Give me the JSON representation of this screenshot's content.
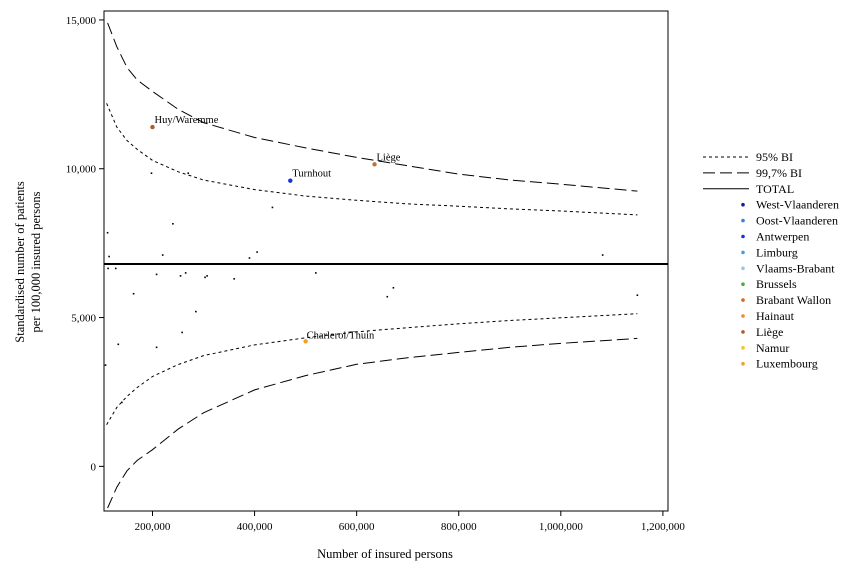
{
  "chart_data": {
    "type": "scatter",
    "xlabel": "Number of insured persons",
    "ylabel_line1": "Standardised number of patients",
    "ylabel_line2": "per 100,000 insured persons",
    "xlim": [
      105000,
      1210000
    ],
    "ylim": [
      -1500,
      15300
    ],
    "x_ticks": [
      {
        "v": 200000,
        "label": "200,000"
      },
      {
        "v": 400000,
        "label": "400,000"
      },
      {
        "v": 600000,
        "label": "600,000"
      },
      {
        "v": 800000,
        "label": "800,000"
      },
      {
        "v": 1000000,
        "label": "1,000,000"
      },
      {
        "v": 1200000,
        "label": "1,200,000"
      }
    ],
    "y_ticks": [
      {
        "v": 15000,
        "label": "15,000"
      },
      {
        "v": 10000,
        "label": "10,000"
      },
      {
        "v": 5000,
        "label": "5,000"
      },
      {
        "v": 0,
        "label": "0"
      }
    ],
    "total_line": 6800,
    "funnel": {
      "x_start": 110000,
      "x_end": 1150000,
      "ci95_upper": [
        [
          110000,
          12200
        ],
        [
          130000,
          11400
        ],
        [
          150000,
          10950
        ],
        [
          170000,
          10650
        ],
        [
          200000,
          10280
        ],
        [
          250000,
          9900
        ],
        [
          300000,
          9620
        ],
        [
          400000,
          9300
        ],
        [
          500000,
          9080
        ],
        [
          600000,
          8940
        ],
        [
          700000,
          8820
        ],
        [
          800000,
          8740
        ],
        [
          900000,
          8650
        ],
        [
          1000000,
          8580
        ],
        [
          1150000,
          8450
        ]
      ],
      "ci95_lower": [
        [
          110000,
          1400
        ],
        [
          130000,
          1980
        ],
        [
          150000,
          2350
        ],
        [
          170000,
          2650
        ],
        [
          200000,
          3020
        ],
        [
          250000,
          3420
        ],
        [
          300000,
          3720
        ],
        [
          400000,
          4080
        ],
        [
          500000,
          4320
        ],
        [
          600000,
          4520
        ],
        [
          700000,
          4660
        ],
        [
          800000,
          4790
        ],
        [
          900000,
          4900
        ],
        [
          1000000,
          4990
        ],
        [
          1150000,
          5130
        ]
      ],
      "ci997_upper": [
        [
          112000,
          14900
        ],
        [
          130000,
          14100
        ],
        [
          150000,
          13400
        ],
        [
          170000,
          12980
        ],
        [
          200000,
          12600
        ],
        [
          250000,
          12000
        ],
        [
          300000,
          11550
        ],
        [
          400000,
          11050
        ],
        [
          500000,
          10700
        ],
        [
          600000,
          10380
        ],
        [
          700000,
          10100
        ],
        [
          800000,
          9820
        ],
        [
          900000,
          9620
        ],
        [
          1000000,
          9480
        ],
        [
          1150000,
          9250
        ]
      ],
      "ci997_lower": [
        [
          112000,
          -1400
        ],
        [
          130000,
          -700
        ],
        [
          150000,
          -150
        ],
        [
          170000,
          200
        ],
        [
          200000,
          560
        ],
        [
          250000,
          1250
        ],
        [
          300000,
          1800
        ],
        [
          400000,
          2570
        ],
        [
          500000,
          3050
        ],
        [
          600000,
          3430
        ],
        [
          700000,
          3650
        ],
        [
          800000,
          3830
        ],
        [
          900000,
          4000
        ],
        [
          1000000,
          4130
        ],
        [
          1150000,
          4300
        ]
      ]
    },
    "points": [
      {
        "x": 112000,
        "y": 7850
      },
      {
        "x": 115000,
        "y": 7050
      },
      {
        "x": 113000,
        "y": 6650
      },
      {
        "x": 128000,
        "y": 6650
      },
      {
        "x": 108000,
        "y": 3400
      },
      {
        "x": 133000,
        "y": 4100
      },
      {
        "x": 140000,
        "y": 2150
      },
      {
        "x": 163000,
        "y": 5800
      },
      {
        "x": 198000,
        "y": 9850
      },
      {
        "x": 208000,
        "y": 6450
      },
      {
        "x": 208000,
        "y": 4000
      },
      {
        "x": 220000,
        "y": 7100
      },
      {
        "x": 240000,
        "y": 8150
      },
      {
        "x": 255000,
        "y": 6400
      },
      {
        "x": 258000,
        "y": 4500
      },
      {
        "x": 265000,
        "y": 6500
      },
      {
        "x": 270000,
        "y": 9850
      },
      {
        "x": 285000,
        "y": 5200
      },
      {
        "x": 303000,
        "y": 6350
      },
      {
        "x": 307000,
        "y": 6400
      },
      {
        "x": 360000,
        "y": 6300
      },
      {
        "x": 390000,
        "y": 7000
      },
      {
        "x": 405000,
        "y": 7200
      },
      {
        "x": 435000,
        "y": 8700
      },
      {
        "x": 520000,
        "y": 6500
      },
      {
        "x": 660000,
        "y": 5700
      },
      {
        "x": 672000,
        "y": 6000
      },
      {
        "x": 1082000,
        "y": 7100
      },
      {
        "x": 1150000,
        "y": 5750
      }
    ],
    "highlights": [
      {
        "label": "Huy/Waremme",
        "x": 200000,
        "y": 11400,
        "color": "#b5582a",
        "dx": 2,
        "dy": -4
      },
      {
        "label": "Turnhout",
        "x": 470000,
        "y": 9600,
        "color": "#1f2fd6",
        "dx": 2,
        "dy": -4
      },
      {
        "label": "Liège",
        "x": 635000,
        "y": 10150,
        "color": "#c0703a",
        "dx": 2,
        "dy": -4
      },
      {
        "label": "Charleroi/Thuin",
        "x": 500000,
        "y": 4200,
        "color": "#f5a020",
        "dx": 1,
        "dy": -3
      }
    ]
  },
  "legend": {
    "lines": [
      {
        "label": "95% BI",
        "dash": "3,3"
      },
      {
        "label": "99,7% BI",
        "dash": "12,5"
      },
      {
        "label": "TOTAL",
        "dash": ""
      }
    ],
    "regions": [
      {
        "label": "West-Vlaanderen",
        "color": "#1a1aa0"
      },
      {
        "label": "Oost-Vlaanderen",
        "color": "#3f7de0"
      },
      {
        "label": "Antwerpen",
        "color": "#1f2fd6"
      },
      {
        "label": "Limburg",
        "color": "#3ea0e8"
      },
      {
        "label": "Vlaams-Brabant",
        "color": "#8cc8f0"
      },
      {
        "label": "Brussels",
        "color": "#3cb43c"
      },
      {
        "label": "Brabant Wallon",
        "color": "#d2691e"
      },
      {
        "label": "Hainaut",
        "color": "#f08a28"
      },
      {
        "label": "Liège",
        "color": "#b5582a"
      },
      {
        "label": "Namur",
        "color": "#f5c518"
      },
      {
        "label": "Luxembourg",
        "color": "#f0a030"
      }
    ]
  }
}
